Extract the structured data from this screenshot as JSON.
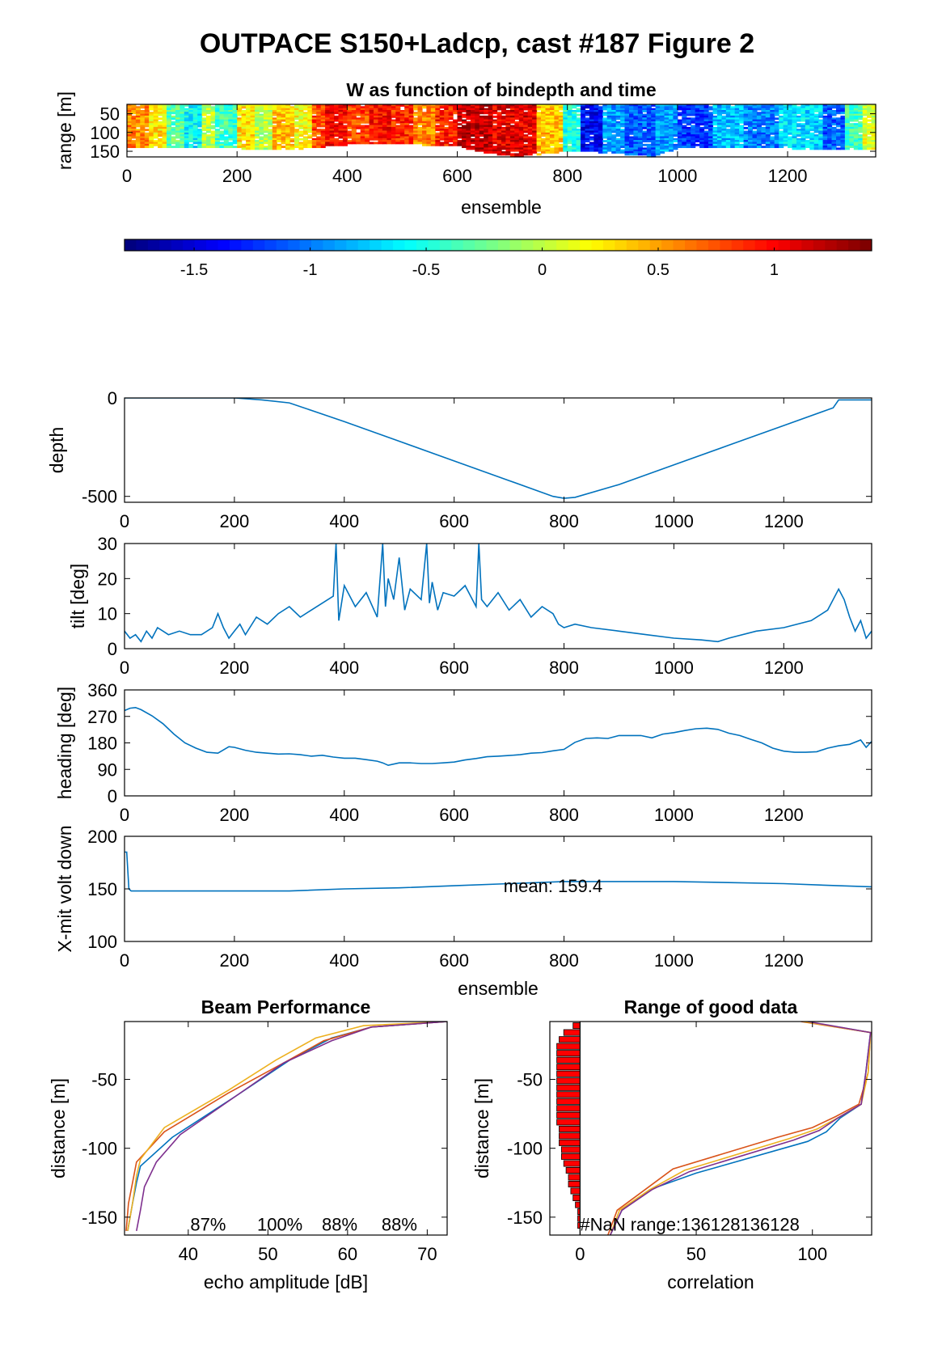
{
  "figure_title": "OUTPACE S150+Ladcp, cast #187 Figure 2",
  "colors": {
    "line": "#0072BD",
    "bar": "#ff0000",
    "axis": "#000000"
  },
  "chart_data": [
    {
      "id": "w_image",
      "type": "heatmap",
      "title": "W as function of bindepth and time",
      "xlabel": "ensemble",
      "ylabel": "range [m]",
      "xlim": [
        0,
        1360
      ],
      "ylim": [
        25,
        165
      ],
      "y_reversed": true,
      "xticks": [
        0,
        200,
        400,
        600,
        800,
        1000,
        1200
      ],
      "yticks": [
        50,
        100,
        150
      ],
      "ensemble_segments": [
        {
          "x": [
            0,
            40
          ],
          "w": 0.6
        },
        {
          "x": [
            40,
            70
          ],
          "w": 0.3
        },
        {
          "x": [
            70,
            100
          ],
          "w": -0.3
        },
        {
          "x": [
            100,
            130
          ],
          "w": -0.6
        },
        {
          "x": [
            130,
            160
          ],
          "w": 0.0
        },
        {
          "x": [
            160,
            200
          ],
          "w": -0.4
        },
        {
          "x": [
            200,
            230
          ],
          "w": 0.3
        },
        {
          "x": [
            230,
            260
          ],
          "w": 0.0
        },
        {
          "x": [
            260,
            300
          ],
          "w": 0.4
        },
        {
          "x": [
            300,
            330
          ],
          "w": 0.2
        },
        {
          "x": [
            330,
            360
          ],
          "w": 0.8
        },
        {
          "x": [
            360,
            400
          ],
          "w": 1.0
        },
        {
          "x": [
            400,
            440
          ],
          "w": 0.8
        },
        {
          "x": [
            440,
            480
          ],
          "w": 1.0
        },
        {
          "x": [
            480,
            520
          ],
          "w": 0.9
        },
        {
          "x": [
            520,
            560
          ],
          "w": 0.6
        },
        {
          "x": [
            560,
            600
          ],
          "w": 0.9
        },
        {
          "x": [
            600,
            660
          ],
          "w": 1.2
        },
        {
          "x": [
            660,
            740
          ],
          "w": 1.1
        },
        {
          "x": [
            740,
            790
          ],
          "w": 0.4
        },
        {
          "x": [
            790,
            820
          ],
          "w": -0.5
        },
        {
          "x": [
            820,
            860
          ],
          "w": -1.4
        },
        {
          "x": [
            860,
            900
          ],
          "w": -0.9
        },
        {
          "x": [
            900,
            960
          ],
          "w": -1.1
        },
        {
          "x": [
            960,
            1000
          ],
          "w": -0.9
        },
        {
          "x": [
            1000,
            1060
          ],
          "w": -1.2
        },
        {
          "x": [
            1060,
            1120
          ],
          "w": -0.8
        },
        {
          "x": [
            1120,
            1180
          ],
          "w": -1.0
        },
        {
          "x": [
            1180,
            1260
          ],
          "w": -0.7
        },
        {
          "x": [
            1260,
            1300
          ],
          "w": -1.1
        },
        {
          "x": [
            1300,
            1330
          ],
          "w": -0.4
        },
        {
          "x": [
            1330,
            1360
          ],
          "w": 0.1
        }
      ],
      "max_range_by_ensemble": {
        "x": [
          0,
          100,
          200,
          300,
          400,
          500,
          600,
          650,
          700,
          780,
          850,
          900,
          950,
          1000,
          1100,
          1200,
          1300,
          1360
        ],
        "range": [
          138,
          140,
          140,
          142,
          130,
          128,
          135,
          152,
          162,
          150,
          150,
          155,
          162,
          138,
          135,
          140,
          145,
          140
        ]
      }
    },
    {
      "id": "colorbar",
      "type": "colorbar",
      "clim": [
        -1.8,
        1.42
      ],
      "ticks": [
        -1.5,
        -1,
        -0.5,
        0,
        0.5,
        1
      ],
      "tick_labels": [
        "-1.5",
        "-1",
        "-0.5",
        "0",
        "0.5",
        "1"
      ]
    },
    {
      "id": "depth",
      "type": "line",
      "ylabel": "depth",
      "xlim": [
        0,
        1360
      ],
      "ylim": [
        -530,
        0
      ],
      "xticks": [
        0,
        200,
        400,
        600,
        800,
        1000,
        1200
      ],
      "yticks": [
        -500,
        0
      ],
      "x": [
        0,
        100,
        200,
        250,
        300,
        400,
        500,
        600,
        700,
        780,
        800,
        820,
        900,
        1000,
        1100,
        1200,
        1290,
        1300,
        1360
      ],
      "y": [
        0,
        0,
        0,
        -10,
        -25,
        -120,
        -220,
        -320,
        -420,
        -500,
        -510,
        -505,
        -440,
        -340,
        -240,
        -140,
        -50,
        -10,
        -10
      ]
    },
    {
      "id": "tilt",
      "type": "line",
      "ylabel": "tilt [deg]",
      "xlim": [
        0,
        1360
      ],
      "ylim": [
        0,
        30
      ],
      "xticks": [
        0,
        200,
        400,
        600,
        800,
        1000,
        1200
      ],
      "yticks": [
        0,
        10,
        20,
        30
      ],
      "x": [
        0,
        10,
        20,
        30,
        40,
        50,
        60,
        70,
        80,
        100,
        120,
        140,
        160,
        170,
        175,
        180,
        190,
        200,
        210,
        220,
        240,
        260,
        280,
        300,
        320,
        340,
        360,
        380,
        385,
        390,
        400,
        420,
        440,
        460,
        470,
        475,
        480,
        490,
        500,
        510,
        520,
        540,
        550,
        555,
        560,
        570,
        580,
        600,
        620,
        640,
        645,
        650,
        660,
        680,
        700,
        720,
        740,
        760,
        780,
        790,
        800,
        820,
        850,
        900,
        950,
        1000,
        1050,
        1080,
        1100,
        1150,
        1200,
        1250,
        1280,
        1300,
        1310,
        1320,
        1330,
        1340,
        1350,
        1360
      ],
      "y": [
        5,
        3,
        4,
        2,
        5,
        3,
        6,
        5,
        4,
        5,
        4,
        4,
        6,
        10,
        8,
        6,
        3,
        5,
        7,
        4,
        9,
        7,
        10,
        12,
        9,
        11,
        13,
        15,
        30,
        8,
        18,
        12,
        16,
        9,
        30,
        12,
        20,
        14,
        26,
        11,
        17,
        14,
        30,
        13,
        19,
        11,
        16,
        15,
        18,
        12,
        30,
        14,
        12,
        16,
        11,
        14,
        9,
        12,
        10,
        7,
        6,
        7,
        6,
        5,
        4,
        3,
        2.5,
        2,
        3,
        5,
        6,
        8,
        11,
        17,
        14,
        9,
        5,
        8,
        3,
        5
      ]
    },
    {
      "id": "heading",
      "type": "line",
      "ylabel": "heading [deg]",
      "xlim": [
        0,
        1360
      ],
      "ylim": [
        0,
        360
      ],
      "xticks": [
        0,
        200,
        400,
        600,
        800,
        1000,
        1200
      ],
      "yticks": [
        0,
        90,
        180,
        270,
        360
      ],
      "x": [
        0,
        10,
        20,
        30,
        50,
        70,
        90,
        110,
        130,
        150,
        170,
        190,
        200,
        220,
        240,
        260,
        280,
        300,
        320,
        340,
        360,
        380,
        400,
        420,
        440,
        460,
        470,
        480,
        500,
        520,
        540,
        560,
        580,
        600,
        620,
        640,
        660,
        680,
        700,
        720,
        740,
        760,
        780,
        800,
        820,
        840,
        860,
        880,
        900,
        940,
        960,
        980,
        1000,
        1020,
        1040,
        1060,
        1080,
        1100,
        1120,
        1140,
        1160,
        1180,
        1200,
        1220,
        1240,
        1260,
        1280,
        1300,
        1320,
        1340,
        1350,
        1360
      ],
      "y": [
        290,
        298,
        300,
        293,
        272,
        245,
        210,
        180,
        162,
        148,
        145,
        167,
        165,
        155,
        148,
        145,
        142,
        143,
        140,
        135,
        138,
        132,
        128,
        128,
        123,
        118,
        112,
        104,
        112,
        112,
        110,
        110,
        112,
        115,
        122,
        127,
        133,
        135,
        137,
        140,
        145,
        147,
        153,
        158,
        182,
        195,
        197,
        195,
        205,
        205,
        197,
        210,
        215,
        222,
        228,
        230,
        226,
        213,
        205,
        192,
        180,
        162,
        152,
        148,
        148,
        150,
        162,
        170,
        175,
        190,
        165,
        185
      ]
    },
    {
      "id": "xmit_volt",
      "type": "line",
      "ylabel": "X-mit volt down",
      "xlabel": "ensemble",
      "xlim": [
        0,
        1360
      ],
      "ylim": [
        100,
        200
      ],
      "xticks": [
        0,
        200,
        400,
        600,
        800,
        1000,
        1200
      ],
      "yticks": [
        100,
        150,
        200
      ],
      "x": [
        0,
        4,
        8,
        12,
        20,
        100,
        300,
        400,
        500,
        600,
        700,
        800,
        900,
        1000,
        1100,
        1200,
        1300,
        1360
      ],
      "y": [
        185,
        185,
        150,
        148,
        148,
        148,
        148,
        150,
        151,
        153,
        155,
        157,
        157,
        157,
        156,
        155,
        153,
        152
      ],
      "annotation": "mean: 159.4",
      "annotation_xy": [
        690,
        153
      ]
    },
    {
      "id": "beam_perf",
      "type": "line",
      "title": "Beam Performance",
      "xlabel": "echo amplitude [dB]",
      "ylabel": "distance [m]",
      "xlim": [
        32,
        72.5
      ],
      "ylim": [
        -163,
        -8
      ],
      "xticks": [
        40,
        50,
        60,
        70
      ],
      "yticks": [
        -150,
        -100,
        -50
      ],
      "series": [
        {
          "color": "#0072BD",
          "x": [
            72.5,
            63,
            58,
            53,
            46,
            38,
            34,
            33.5,
            33,
            32.4
          ],
          "y": [
            -8,
            -12,
            -20,
            -35,
            -62,
            -92,
            -113,
            -125,
            -140,
            -160
          ]
        },
        {
          "color": "#D95319",
          "x": [
            72.5,
            63,
            57,
            52,
            45,
            37,
            33.5,
            33,
            32.5,
            32.2
          ],
          "y": [
            -8,
            -12,
            -22,
            -38,
            -60,
            -88,
            -110,
            -125,
            -140,
            -160
          ]
        },
        {
          "color": "#EDB120",
          "x": [
            72.5,
            62,
            56,
            51,
            45,
            37,
            34,
            33.5,
            33,
            32.4
          ],
          "y": [
            -8,
            -11,
            -20,
            -36,
            -58,
            -85,
            -108,
            -120,
            -140,
            -160
          ]
        },
        {
          "color": "#7E2F8E",
          "x": [
            72.5,
            63,
            58,
            52,
            46,
            39,
            36,
            34.5,
            34,
            33.5
          ],
          "y": [
            -8,
            -12,
            -22,
            -38,
            -62,
            -90,
            -110,
            -128,
            -145,
            -160
          ]
        }
      ],
      "percent_labels": [
        {
          "text": "87%",
          "x": 42.5,
          "y": -155
        },
        {
          "text": "100%",
          "x": 51.5,
          "y": -155
        },
        {
          "text": "88%",
          "x": 59,
          "y": -155
        },
        {
          "text": "88%",
          "x": 66.5,
          "y": -155
        }
      ]
    },
    {
      "id": "good_range",
      "type": "line",
      "title": "Range of good data",
      "xlabel": "correlation",
      "ylabel": "distance [m]",
      "xlim": [
        -13,
        125.5
      ],
      "ylim": [
        -163,
        -8
      ],
      "xticks": [
        0,
        50,
        100
      ],
      "yticks": [
        -150,
        -100,
        -50
      ],
      "bars": {
        "y": [
          -11,
          -16,
          -21,
          -26,
          -31,
          -36,
          -41,
          -46,
          -51,
          -56,
          -61,
          -66,
          -71,
          -76,
          -81,
          -86,
          -91,
          -96,
          -101,
          -106,
          -111,
          -116,
          -121,
          -126,
          -131,
          -136,
          -141,
          -146,
          -151,
          -156
        ],
        "value": [
          -3,
          -7,
          -9,
          -10,
          -10,
          -10,
          -10,
          -10,
          -10,
          -10,
          -10,
          -10,
          -10,
          -10,
          -10,
          -9,
          -9,
          -9,
          -8,
          -8,
          -7,
          -6,
          -5,
          -5,
          -4,
          -3,
          -2,
          -1,
          -1,
          -1
        ]
      },
      "series": [
        {
          "color": "#0072BD",
          "x": [
            97,
            125,
            123,
            121,
            112,
            106,
            98,
            50,
            30,
            18,
            13
          ],
          "y": [
            -8,
            -16,
            -45,
            -68,
            -78,
            -88,
            -95,
            -118,
            -130,
            -145,
            -163
          ]
        },
        {
          "color": "#D95319",
          "x": [
            95,
            125,
            124,
            120,
            110,
            100,
            85,
            40,
            28,
            16,
            12
          ],
          "y": [
            -8,
            -16,
            -45,
            -68,
            -77,
            -85,
            -92,
            -115,
            -130,
            -145,
            -163
          ]
        },
        {
          "color": "#EDB120",
          "x": [
            96,
            125,
            124,
            121,
            112,
            102,
            90,
            45,
            30,
            17,
            13
          ],
          "y": [
            -8,
            -16,
            -45,
            -68,
            -77,
            -86,
            -93,
            -116,
            -130,
            -145,
            -163
          ]
        },
        {
          "color": "#7E2F8E",
          "x": [
            98,
            125,
            123,
            121,
            111,
            103,
            92,
            47,
            31,
            18,
            13
          ],
          "y": [
            -8,
            -16,
            -45,
            -68,
            -78,
            -87,
            -94,
            -117,
            -130,
            -145,
            -163
          ]
        }
      ],
      "annotation": "#NaN range:136128136128",
      "annotation_xy": [
        0,
        -155
      ]
    }
  ]
}
